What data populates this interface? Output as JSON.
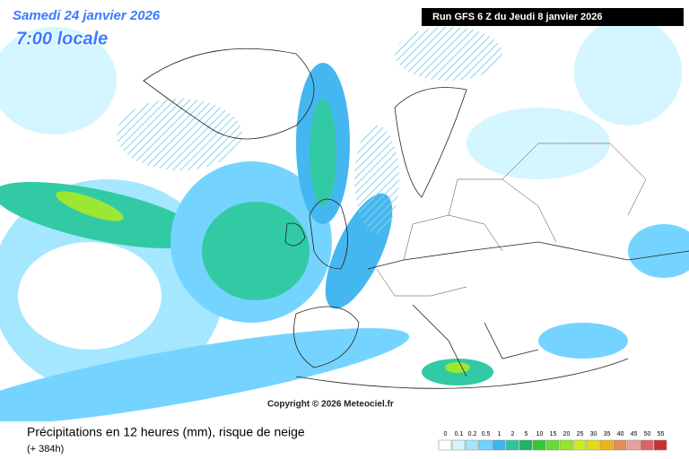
{
  "map": {
    "date": "Samedi 24 janvier 2026",
    "time": "7:00 locale",
    "run": "Run GFS 6 Z du Jeudi 8 janvier 2026",
    "copyright": "Copyright © 2026 Meteociel.fr"
  },
  "legend": {
    "title": "Précipitations en 12 heures (mm), risque de neige",
    "subtitle": "(+ 384h)",
    "values": [
      0,
      0.1,
      0.2,
      0.5,
      1,
      2,
      5,
      10,
      15,
      20,
      25,
      30,
      35,
      40,
      45,
      50,
      55
    ],
    "colors": [
      "#ffffff",
      "#d2f5ff",
      "#a0e6ff",
      "#6ed2ff",
      "#3cb4f0",
      "#28c8a0",
      "#1eb464",
      "#32c832",
      "#64dc32",
      "#96e628",
      "#c8f01e",
      "#e6dc14",
      "#f0b414",
      "#e68c50",
      "#e6a0a0",
      "#dc6464",
      "#c83232"
    ]
  }
}
